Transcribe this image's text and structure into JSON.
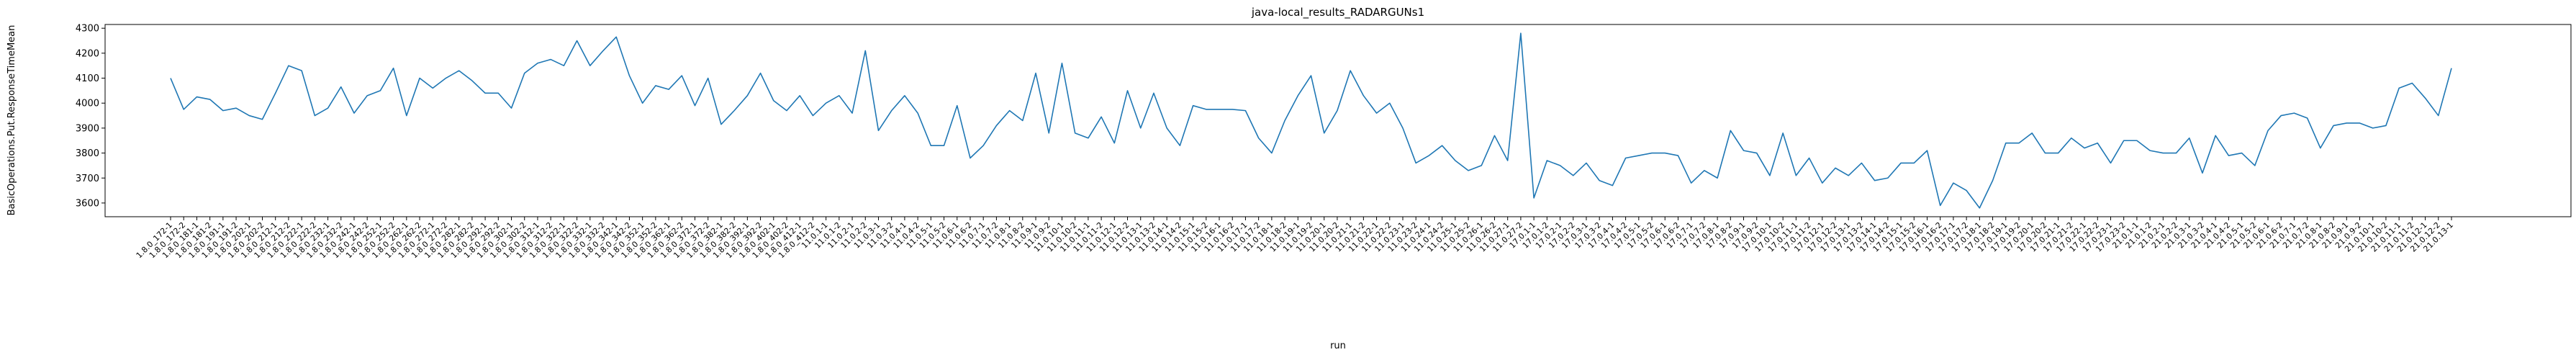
{
  "chart_data": {
    "type": "line",
    "title": "java-local_results_RADARGUNs1",
    "x_label": "run",
    "y_label": "BasicOperations.Put.ResponseTimeMean",
    "categories": [
      "1.8.0_172-1",
      "1.8.0_172-2",
      "1.8.0_181-1",
      "1.8.0_181-2",
      "1.8.0_191-1",
      "1.8.0_191-2",
      "1.8.0_202-1",
      "1.8.0_202-2",
      "1.8.0_212-1",
      "1.8.0_212-2",
      "1.8.0_222-1",
      "1.8.0_222-2",
      "1.8.0_232-1",
      "1.8.0_232-2",
      "1.8.0_242-1",
      "1.8.0_242-2",
      "1.8.0_252-1",
      "1.8.0_252-2",
      "1.8.0_262-1",
      "1.8.0_262-2",
      "1.8.0_272-1",
      "1.8.0_272-2",
      "1.8.0_282-1",
      "1.8.0_282-2",
      "1.8.0_292-1",
      "1.8.0_292-2",
      "1.8.0_302-1",
      "1.8.0_302-2",
      "1.8.0_312-1",
      "1.8.0_312-2",
      "1.8.0_322-1",
      "1.8.0_322-2",
      "1.8.0_332-1",
      "1.8.0_332-2",
      "1.8.0_342-1",
      "1.8.0_342-2",
      "1.8.0_352-1",
      "1.8.0_352-2",
      "1.8.0_362-1",
      "1.8.0_362-2",
      "1.8.0_372-1",
      "1.8.0_372-2",
      "1.8.0_382-1",
      "1.8.0_382-2",
      "1.8.0_392-1",
      "1.8.0_392-2",
      "1.8.0_402-1",
      "1.8.0_402-2",
      "1.8.0_412-1",
      "1.8.0_412-2",
      "11.0.1-1",
      "11.0.1-2",
      "11.0.2-1",
      "11.0.2-2",
      "11.0.3-1",
      "11.0.3-2",
      "11.0.4-1",
      "11.0.4-2",
      "11.0.5-1",
      "11.0.5-2",
      "11.0.6-1",
      "11.0.6-2",
      "11.0.7-1",
      "11.0.7-2",
      "11.0.8-1",
      "11.0.8-2",
      "11.0.9-1",
      "11.0.9-2",
      "11.0.10-1",
      "11.0.10-2",
      "11.0.11-1",
      "11.0.11-2",
      "11.0.12-1",
      "11.0.12-2",
      "11.0.13-1",
      "11.0.13-2",
      "11.0.14-1",
      "11.0.14-2",
      "11.0.15-1",
      "11.0.15-2",
      "11.0.16-1",
      "11.0.16-2",
      "11.0.17-1",
      "11.0.17-2",
      "11.0.18-1",
      "11.0.18-2",
      "11.0.19-1",
      "11.0.19-2",
      "11.0.20-1",
      "11.0.20-2",
      "11.0.21-1",
      "11.0.21-2",
      "11.0.22-1",
      "11.0.22-2",
      "11.0.23-1",
      "11.0.23-2",
      "11.0.24-1",
      "11.0.24-2",
      "11.0.25-1",
      "11.0.25-2",
      "11.0.26-1",
      "11.0.26-2",
      "11.0.27-1",
      "11.0.27-2",
      "17.0.1-1",
      "17.0.1-2",
      "17.0.2-1",
      "17.0.2-2",
      "17.0.3-1",
      "17.0.3-2",
      "17.0.4-1",
      "17.0.4-2",
      "17.0.5-1",
      "17.0.5-2",
      "17.0.6-1",
      "17.0.6-2",
      "17.0.7-1",
      "17.0.7-2",
      "17.0.8-1",
      "17.0.8-2",
      "17.0.9-1",
      "17.0.9-2",
      "17.0.10-1",
      "17.0.10-2",
      "17.0.11-1",
      "17.0.11-2",
      "17.0.12-1",
      "17.0.12-2",
      "17.0.13-1",
      "17.0.13-2",
      "17.0.14-1",
      "17.0.14-2",
      "17.0.15-1",
      "17.0.15-2",
      "17.0.16-1",
      "17.0.16-2",
      "17.0.17-1",
      "17.0.17-2",
      "17.0.18-1",
      "17.0.18-2",
      "17.0.19-1",
      "17.0.19-2",
      "17.0.20-1",
      "17.0.20-2",
      "17.0.21-1",
      "17.0.21-2",
      "17.0.22-1",
      "17.0.22-2",
      "17.0.23-1",
      "17.0.23-2",
      "21.0.1-1",
      "21.0.1-2",
      "21.0.2-1",
      "21.0.2-2",
      "21.0.3-1",
      "21.0.3-2",
      "21.0.4-1",
      "21.0.4-2",
      "21.0.5-1",
      "21.0.5-2",
      "21.0.6-1",
      "21.0.6-2",
      "21.0.7-1",
      "21.0.7-2",
      "21.0.8-1",
      "21.0.8-2",
      "21.0.9-1",
      "21.0.9-2",
      "21.0.10-1",
      "21.0.10-2",
      "21.0.11-1",
      "21.0.11-2",
      "21.0.12-1",
      "21.0.12-2",
      "21.0.13-1"
    ],
    "values": [
      4100,
      3975,
      4025,
      4015,
      3970,
      3980,
      3950,
      3935,
      4040,
      4150,
      4130,
      3950,
      3980,
      4065,
      3960,
      4030,
      4050,
      4140,
      3950,
      4100,
      4060,
      4100,
      4130,
      4090,
      4040,
      4040,
      3980,
      4120,
      4160,
      4175,
      4150,
      4250,
      4150,
      4210,
      4265,
      4110,
      4000,
      4070,
      4055,
      4110,
      3990,
      4100,
      3915,
      3970,
      4030,
      4120,
      4010,
      3970,
      4030,
      3950,
      4000,
      4030,
      3960,
      4210,
      3890,
      3970,
      4030,
      3960,
      3830,
      3830,
      3990,
      3780,
      3830,
      3910,
      3970,
      3930,
      4120,
      3880,
      4160,
      3880,
      3860,
      3945,
      3840,
      4050,
      3900,
      4040,
      3900,
      3830,
      3990,
      3975,
      3975,
      3975,
      3970,
      3860,
      3800,
      3930,
      4030,
      4110,
      3880,
      3970,
      4130,
      4030,
      3960,
      4000,
      3900,
      3760,
      3790,
      3830,
      3770,
      3730,
      3750,
      3870,
      3770,
      4280,
      3620,
      3770,
      3750,
      3710,
      3760,
      3690,
      3670,
      3780,
      3790,
      3800,
      3800,
      3790,
      3680,
      3730,
      3700,
      3890,
      3810,
      3800,
      3710,
      3880,
      3710,
      3780,
      3680,
      3740,
      3710,
      3760,
      3690,
      3700,
      3760,
      3760,
      3810,
      3590,
      3680,
      3650,
      3580,
      3690,
      3840,
      3840,
      3880,
      3800,
      3800,
      3860,
      3820,
      3840,
      3760,
      3850,
      3850,
      3810,
      3800,
      3800,
      3860,
      3720,
      3870,
      3790,
      3800,
      3750,
      3890,
      3950,
      3960,
      3940,
      3820,
      3910,
      3920,
      3920,
      3900,
      3910,
      4060,
      4080,
      4020,
      3950,
      4140
    ],
    "color": "#1f77b4",
    "ylim": [
      3545,
      4315
    ],
    "yticks": [
      3600,
      3700,
      3800,
      3900,
      4000,
      4100,
      4200,
      4300
    ],
    "grid": false
  }
}
